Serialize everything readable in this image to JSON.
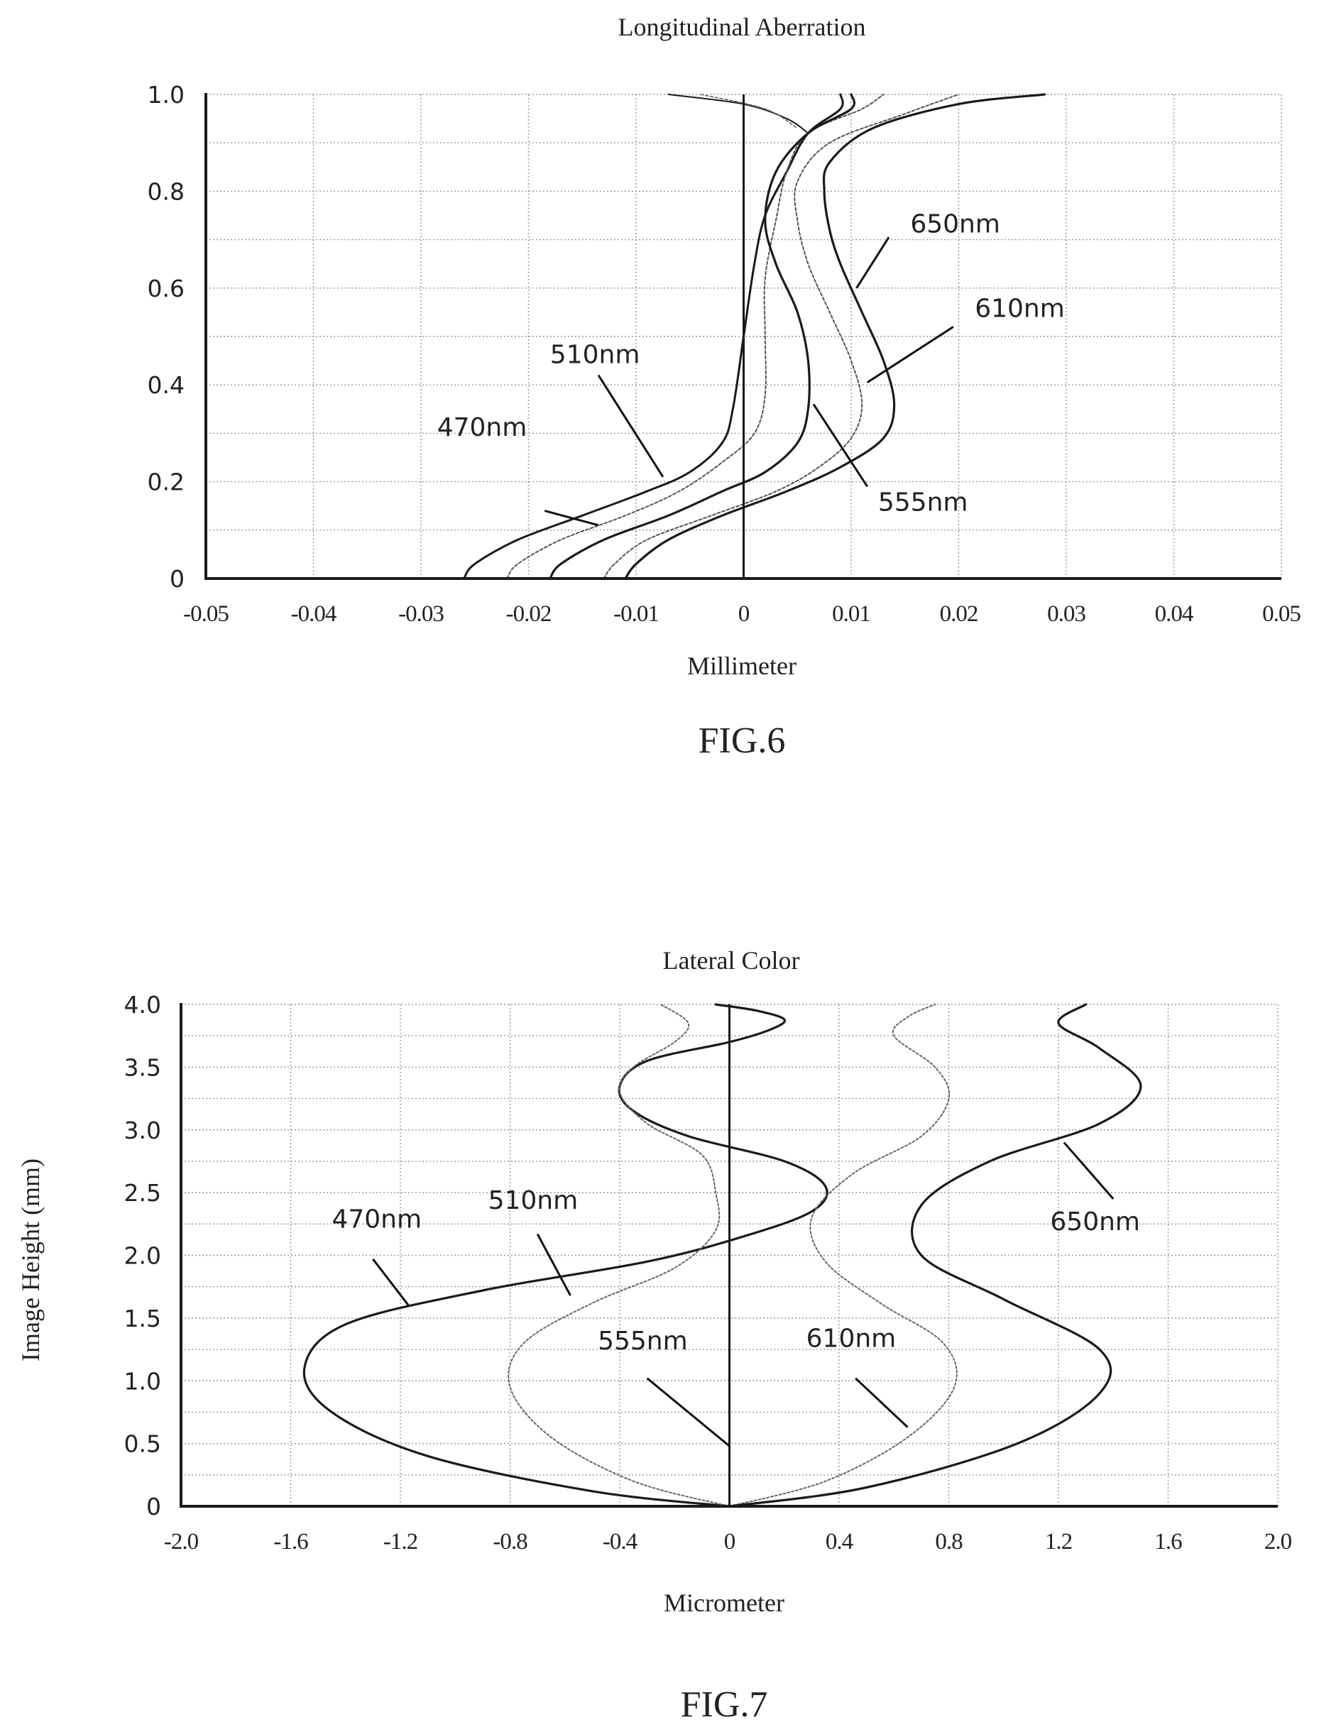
{
  "chart_data": [
    {
      "type": "line",
      "title": "Longitudinal Aberration",
      "xlabel": "Millimeter",
      "ylabel": "",
      "caption": "FIG.6",
      "xlim": [
        -0.05,
        0.05
      ],
      "ylim": [
        0,
        1.0
      ],
      "xticks": [
        "-0.05",
        "-0.04",
        "-0.03",
        "-0.02",
        "-0.01",
        "0",
        "0.01",
        "0.02",
        "0.03",
        "0.04",
        "0.05"
      ],
      "yticks": [
        "0",
        "0.2",
        "0.4",
        "0.6",
        "0.8",
        "1.0"
      ],
      "grid": true,
      "series": [
        {
          "name": "470nm",
          "color": "#1a1a1a",
          "width": 3,
          "dash": "",
          "points": [
            [
              -0.026,
              0
            ],
            [
              -0.025,
              0.03
            ],
            [
              -0.021,
              0.08
            ],
            [
              -0.015,
              0.13
            ],
            [
              -0.009,
              0.18
            ],
            [
              -0.005,
              0.22
            ],
            [
              -0.002,
              0.28
            ],
            [
              -0.001,
              0.35
            ],
            [
              0.0,
              0.5
            ],
            [
              0.001,
              0.65
            ],
            [
              0.002,
              0.75
            ],
            [
              0.004,
              0.84
            ],
            [
              0.006,
              0.92
            ],
            [
              0.009,
              0.97
            ],
            [
              0.009,
              1.0
            ]
          ]
        },
        {
          "name": "510nm",
          "color": "#555555",
          "width": 2,
          "dash": "4 3",
          "points": [
            [
              -0.022,
              0
            ],
            [
              -0.021,
              0.03
            ],
            [
              -0.017,
              0.08
            ],
            [
              -0.011,
              0.13
            ],
            [
              -0.006,
              0.18
            ],
            [
              -0.002,
              0.24
            ],
            [
              0.001,
              0.3
            ],
            [
              0.002,
              0.38
            ],
            [
              0.002,
              0.5
            ],
            [
              0.002,
              0.62
            ],
            [
              0.003,
              0.74
            ],
            [
              0.004,
              0.84
            ],
            [
              0.006,
              0.92
            ],
            [
              0.011,
              0.97
            ],
            [
              0.013,
              1.0
            ]
          ]
        },
        {
          "name": "555nm",
          "color": "#1a1a1a",
          "width": 3.2,
          "dash": "",
          "points": [
            [
              -0.018,
              0
            ],
            [
              -0.017,
              0.03
            ],
            [
              -0.013,
              0.08
            ],
            [
              -0.007,
              0.13
            ],
            [
              -0.002,
              0.18
            ],
            [
              0.002,
              0.22
            ],
            [
              0.005,
              0.28
            ],
            [
              0.006,
              0.35
            ],
            [
              0.006,
              0.45
            ],
            [
              0.005,
              0.55
            ],
            [
              0.003,
              0.65
            ],
            [
              0.002,
              0.74
            ],
            [
              0.003,
              0.84
            ],
            [
              0.006,
              0.92
            ],
            [
              0.01,
              0.97
            ],
            [
              0.01,
              1.0
            ]
          ]
        },
        {
          "name": "610nm",
          "color": "#555555",
          "width": 2,
          "dash": "4 3",
          "points": [
            [
              -0.013,
              0
            ],
            [
              -0.012,
              0.03
            ],
            [
              -0.009,
              0.08
            ],
            [
              -0.003,
              0.13
            ],
            [
              0.003,
              0.18
            ],
            [
              0.007,
              0.23
            ],
            [
              0.01,
              0.29
            ],
            [
              0.011,
              0.36
            ],
            [
              0.01,
              0.45
            ],
            [
              0.008,
              0.55
            ],
            [
              0.006,
              0.65
            ],
            [
              0.005,
              0.74
            ],
            [
              0.005,
              0.82
            ],
            [
              0.008,
              0.9
            ],
            [
              0.015,
              0.96
            ],
            [
              0.02,
              1.0
            ]
          ]
        },
        {
          "name": "650nm",
          "color": "#1a1a1a",
          "width": 3.2,
          "dash": "",
          "points": [
            [
              -0.011,
              0
            ],
            [
              -0.01,
              0.03
            ],
            [
              -0.007,
              0.08
            ],
            [
              -0.002,
              0.13
            ],
            [
              0.004,
              0.18
            ],
            [
              0.009,
              0.23
            ],
            [
              0.013,
              0.29
            ],
            [
              0.014,
              0.36
            ],
            [
              0.013,
              0.45
            ],
            [
              0.011,
              0.55
            ],
            [
              0.009,
              0.65
            ],
            [
              0.008,
              0.72
            ],
            [
              0.0075,
              0.8
            ],
            [
              0.008,
              0.86
            ],
            [
              0.012,
              0.93
            ],
            [
              0.02,
              0.98
            ],
            [
              0.028,
              1.0
            ]
          ]
        },
        {
          "name": "",
          "color": "#1a1a1a",
          "width": 2,
          "dash": "",
          "points": [
            [
              -0.007,
              1.0
            ],
            [
              0.0,
              0.98
            ],
            [
              0.004,
              0.95
            ],
            [
              0.006,
              0.92
            ]
          ]
        },
        {
          "name": "",
          "color": "#666666",
          "width": 1.6,
          "dash": "4 3",
          "points": [
            [
              -0.004,
              1.0
            ],
            [
              0.002,
              0.97
            ],
            [
              0.005,
              0.93
            ]
          ]
        }
      ],
      "annotations": [
        {
          "text": "470nm",
          "tx": -0.0285,
          "ty": 0.295,
          "ax": -0.0185,
          "ay": 0.14,
          "bx": -0.0135,
          "by": 0.11
        },
        {
          "text": "510nm",
          "tx": -0.018,
          "ty": 0.445,
          "ax": -0.0135,
          "ay": 0.42,
          "bx": -0.0075,
          "by": 0.21
        },
        {
          "text": "555nm",
          "tx": 0.0125,
          "ty": 0.14,
          "ax": 0.0115,
          "ay": 0.19,
          "bx": 0.0065,
          "by": 0.36
        },
        {
          "text": "610nm",
          "tx": 0.0215,
          "ty": 0.54,
          "ax": 0.0195,
          "ay": 0.52,
          "bx": 0.0115,
          "by": 0.405
        },
        {
          "text": "650nm",
          "tx": 0.0155,
          "ty": 0.715,
          "ax": 0.0135,
          "ay": 0.705,
          "bx": 0.0105,
          "by": 0.6
        }
      ]
    },
    {
      "type": "line",
      "title": "Lateral Color",
      "xlabel": "Micrometer",
      "ylabel": "Image Height (mm)",
      "caption": "FIG.7",
      "xlim": [
        -2.0,
        2.0
      ],
      "ylim": [
        0,
        4.0
      ],
      "xticks": [
        "-2.0",
        "-1.6",
        "-1.2",
        "-0.8",
        "-0.4",
        "0",
        "0.4",
        "0.8",
        "1.2",
        "1.6",
        "2.0"
      ],
      "yticks": [
        "0",
        "0.5",
        "1.0",
        "1.5",
        "2.0",
        "2.5",
        "3.0",
        "3.5",
        "4.0"
      ],
      "grid": true,
      "series": [
        {
          "name": "470nm",
          "color": "#1a1a1a",
          "width": 3.2,
          "dash": "",
          "points": [
            [
              0,
              0
            ],
            [
              -0.5,
              0.12
            ],
            [
              -1.1,
              0.4
            ],
            [
              -1.45,
              0.75
            ],
            [
              -1.55,
              1.1
            ],
            [
              -1.4,
              1.45
            ],
            [
              -0.9,
              1.72
            ],
            [
              -0.3,
              1.95
            ],
            [
              0.05,
              2.15
            ],
            [
              0.3,
              2.35
            ],
            [
              0.35,
              2.55
            ],
            [
              0.2,
              2.75
            ],
            [
              -0.15,
              2.95
            ],
            [
              -0.35,
              3.15
            ],
            [
              -0.4,
              3.35
            ],
            [
              -0.3,
              3.55
            ],
            [
              0.0,
              3.7
            ],
            [
              0.15,
              3.8
            ],
            [
              0.2,
              3.88
            ],
            [
              0.1,
              3.95
            ],
            [
              -0.05,
              4.0
            ]
          ]
        },
        {
          "name": "510nm",
          "color": "#666666",
          "width": 2,
          "dash": "3 3",
          "points": [
            [
              0,
              0
            ],
            [
              -0.35,
              0.2
            ],
            [
              -0.65,
              0.55
            ],
            [
              -0.8,
              0.95
            ],
            [
              -0.75,
              1.3
            ],
            [
              -0.5,
              1.62
            ],
            [
              -0.2,
              1.9
            ],
            [
              -0.05,
              2.2
            ],
            [
              -0.05,
              2.5
            ],
            [
              -0.1,
              2.8
            ],
            [
              -0.3,
              3.05
            ],
            [
              -0.4,
              3.3
            ],
            [
              -0.35,
              3.5
            ],
            [
              -0.2,
              3.7
            ],
            [
              -0.15,
              3.85
            ],
            [
              -0.25,
              4.0
            ]
          ]
        },
        {
          "name": "555nm",
          "color": "#1a1a1a",
          "width": 2,
          "dash": "",
          "points": [
            [
              0,
              0
            ],
            [
              0,
              4.0
            ]
          ]
        },
        {
          "name": "610nm",
          "color": "#666666",
          "width": 2,
          "dash": "3 3",
          "points": [
            [
              0,
              0
            ],
            [
              0.35,
              0.2
            ],
            [
              0.65,
              0.55
            ],
            [
              0.82,
              0.95
            ],
            [
              0.78,
              1.3
            ],
            [
              0.55,
              1.62
            ],
            [
              0.35,
              1.95
            ],
            [
              0.3,
              2.3
            ],
            [
              0.45,
              2.65
            ],
            [
              0.7,
              2.95
            ],
            [
              0.8,
              3.25
            ],
            [
              0.75,
              3.5
            ],
            [
              0.6,
              3.75
            ],
            [
              0.65,
              3.9
            ],
            [
              0.75,
              4.0
            ]
          ]
        },
        {
          "name": "650nm",
          "color": "#1a1a1a",
          "width": 3.2,
          "dash": "",
          "points": [
            [
              0,
              0
            ],
            [
              0.5,
              0.15
            ],
            [
              1.05,
              0.5
            ],
            [
              1.35,
              0.9
            ],
            [
              1.35,
              1.25
            ],
            [
              1.0,
              1.65
            ],
            [
              0.7,
              2.0
            ],
            [
              0.7,
              2.4
            ],
            [
              0.95,
              2.75
            ],
            [
              1.35,
              3.05
            ],
            [
              1.5,
              3.35
            ],
            [
              1.35,
              3.65
            ],
            [
              1.2,
              3.85
            ],
            [
              1.3,
              4.0
            ]
          ]
        }
      ],
      "annotations": [
        {
          "text": "470nm",
          "tx": -1.45,
          "ty": 2.22,
          "ax": -1.3,
          "ay": 1.97,
          "bx": -1.17,
          "by": 1.6
        },
        {
          "text": "510nm",
          "tx": -0.88,
          "ty": 2.37,
          "ax": -0.7,
          "ay": 2.17,
          "bx": -0.58,
          "by": 1.68
        },
        {
          "text": "555nm",
          "tx": -0.48,
          "ty": 1.25,
          "ax": -0.3,
          "ay": 1.02,
          "bx": 0.0,
          "by": 0.48
        },
        {
          "text": "610nm",
          "tx": 0.28,
          "ty": 1.27,
          "ax": 0.46,
          "ay": 1.02,
          "bx": 0.65,
          "by": 0.63
        },
        {
          "text": "650nm",
          "tx": 1.17,
          "ty": 2.2,
          "ax": 1.4,
          "ay": 2.45,
          "bx": 1.22,
          "by": 2.9
        }
      ]
    }
  ]
}
